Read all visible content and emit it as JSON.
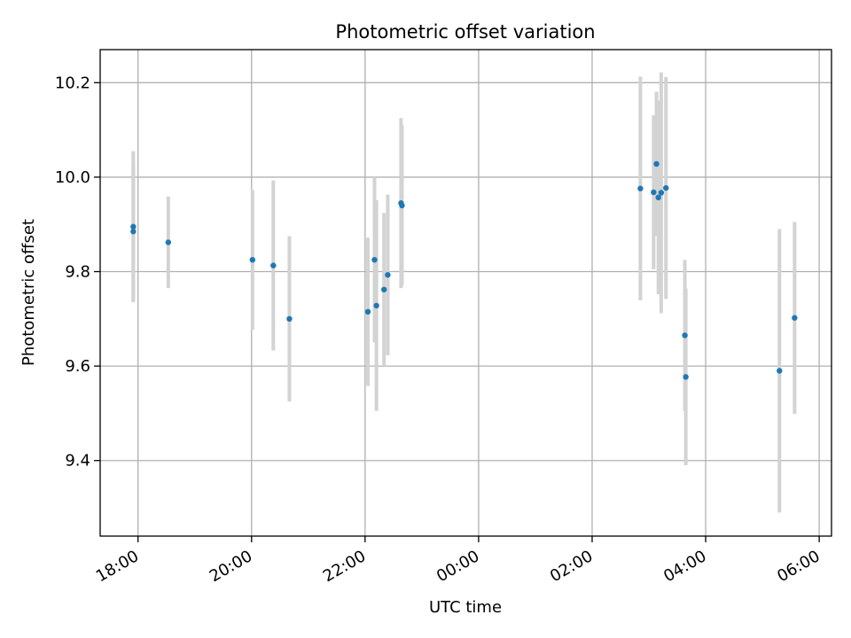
{
  "chart_data": {
    "type": "scatter",
    "title": "Photometric offset variation",
    "xlabel": "UTC time",
    "ylabel": "Photometric offset",
    "x_ticks": [
      "18:00",
      "20:00",
      "22:00",
      "00:00",
      "02:00",
      "04:00",
      "06:00"
    ],
    "y_ticks": [
      "9.4",
      "9.6",
      "9.8",
      "10.0",
      "10.2"
    ],
    "x_tick_values": [
      "18:00",
      "20:00",
      "22:00",
      "00:00",
      "02:00",
      "04:00",
      "06:00"
    ],
    "y_tick_values": [
      9.4,
      9.6,
      9.8,
      10.0,
      10.2
    ],
    "xlim": [
      "17:20",
      "06:13"
    ],
    "ylim": [
      9.24,
      10.27
    ],
    "grid": true,
    "colors": {
      "point": "#1f77b4",
      "errorbar": "#d3d3d3",
      "grid": "#b0b0b0"
    },
    "points": [
      {
        "x": "17:55",
        "y": 9.895,
        "err": 0.16
      },
      {
        "x": "17:55",
        "y": 9.885,
        "err": 0.145
      },
      {
        "x": "18:32",
        "y": 9.862,
        "err": 0.097
      },
      {
        "x": "20:01",
        "y": 9.825,
        "err": 0.148
      },
      {
        "x": "20:23",
        "y": 9.813,
        "err": 0.18
      },
      {
        "x": "20:40",
        "y": 9.7,
        "err": 0.175
      },
      {
        "x": "22:03",
        "y": 9.715,
        "err": 0.157
      },
      {
        "x": "22:10",
        "y": 9.825,
        "err": 0.175
      },
      {
        "x": "22:12",
        "y": 9.728,
        "err": 0.223
      },
      {
        "x": "22:20",
        "y": 9.762,
        "err": 0.162
      },
      {
        "x": "22:24",
        "y": 9.793,
        "err": 0.17
      },
      {
        "x": "22:38",
        "y": 9.945,
        "err": 0.18
      },
      {
        "x": "22:39",
        "y": 9.94,
        "err": 0.17
      },
      {
        "x": "02:51",
        "y": 9.976,
        "err": 0.237
      },
      {
        "x": "03:05",
        "y": 9.968,
        "err": 0.163
      },
      {
        "x": "03:08",
        "y": 10.028,
        "err": 0.153
      },
      {
        "x": "03:10",
        "y": 9.957,
        "err": 0.205
      },
      {
        "x": "03:13",
        "y": 9.967,
        "err": 0.255
      },
      {
        "x": "03:18",
        "y": 9.977,
        "err": 0.235
      },
      {
        "x": "03:38",
        "y": 9.665,
        "err": 0.16
      },
      {
        "x": "03:39",
        "y": 9.577,
        "err": 0.187
      },
      {
        "x": "05:18",
        "y": 9.59,
        "err": 0.3
      },
      {
        "x": "05:34",
        "y": 9.702,
        "err": 0.203
      }
    ]
  }
}
